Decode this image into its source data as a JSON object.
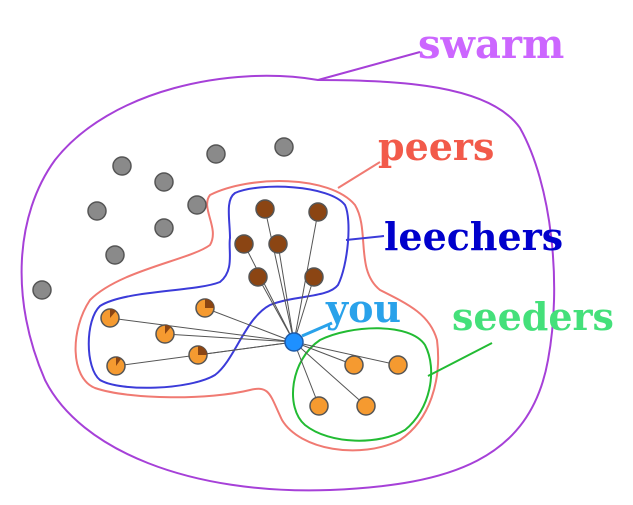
{
  "labels": {
    "swarm": "swarm",
    "peers": "peers",
    "leechers": "leechers",
    "you": "you",
    "seeders": "seeders"
  },
  "colors": {
    "swarm": "#cc66ff",
    "swarm_outline": "#a640d8",
    "peers": "#f25a4a",
    "peers_outline": "#f07a72",
    "leechers": "#0000cc",
    "leechers_outline": "#3b3bd9",
    "you": "#2aa2ea",
    "you_node": "#1e90ff",
    "seeders": "#44e07a",
    "seeders_outline": "#22bb33",
    "other_node": "#8a8a8a",
    "completed_leecher": "#8b4513",
    "partial_leecher": "#f59a30",
    "seeder_node": "#f59a30",
    "connection": "#555555"
  }
}
